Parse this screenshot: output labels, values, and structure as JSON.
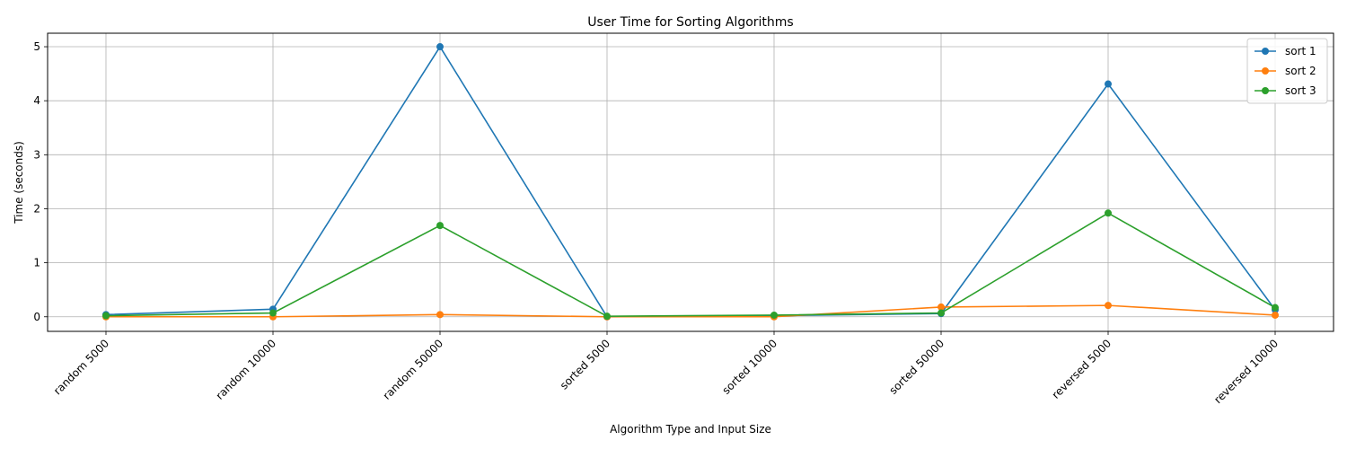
{
  "chart_data": {
    "type": "line",
    "title": "User Time for Sorting Algorithms",
    "xlabel": "Algorithm Type and Input Size",
    "ylabel": "Time (seconds)",
    "categories": [
      "random 5000",
      "random 10000",
      "random 50000",
      "sorted 5000",
      "sorted 10000",
      "sorted 50000",
      "reversed 5000",
      "reversed 10000"
    ],
    "ylim": [
      -0.27,
      5.25
    ],
    "yticks": [
      0,
      1,
      2,
      3,
      4,
      5
    ],
    "grid": true,
    "legend_position": "top-right",
    "series": [
      {
        "name": "sort 1",
        "color": "#1f77b4",
        "values": [
          0.04,
          0.14,
          5.0,
          0.0,
          0.02,
          0.06,
          4.31,
          0.13
        ]
      },
      {
        "name": "sort 2",
        "color": "#ff7f0e",
        "values": [
          0.0,
          0.0,
          0.04,
          0.0,
          0.0,
          0.18,
          0.21,
          0.03
        ]
      },
      {
        "name": "sort 3",
        "color": "#2ca02c",
        "values": [
          0.02,
          0.07,
          1.69,
          0.01,
          0.03,
          0.07,
          1.92,
          0.17
        ]
      }
    ]
  }
}
